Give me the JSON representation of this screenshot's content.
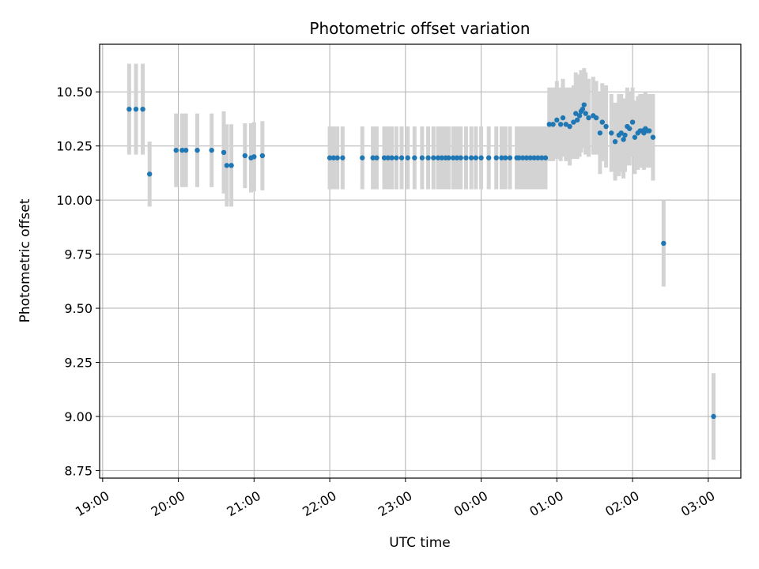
{
  "chart_data": {
    "type": "scatter",
    "title": "Photometric offset variation",
    "xlabel": "UTC time",
    "ylabel": "Photometric offset",
    "x_unit": "hours since 19:00 UTC",
    "xlim": [
      -0.04,
      8.43
    ],
    "ylim": [
      8.715,
      10.72
    ],
    "yticks": [
      "8.75",
      "9.00",
      "9.25",
      "9.50",
      "9.75",
      "10.00",
      "10.25",
      "10.50"
    ],
    "xticks": [
      "19:00",
      "20:00",
      "21:00",
      "22:00",
      "23:00",
      "00:00",
      "01:00",
      "02:00",
      "03:00"
    ],
    "grid": true,
    "point_color": "#1f77b4",
    "errorbar_color": "#d3d3d3",
    "series": [
      {
        "x": [
          0.35,
          0.44,
          0.53,
          0.62,
          0.97,
          1.05,
          1.1,
          1.25,
          1.44,
          1.6,
          1.64,
          1.7,
          1.88,
          1.96,
          2.0,
          2.11,
          3.0,
          3.05,
          3.1,
          3.17,
          3.43,
          3.57,
          3.62,
          3.72,
          3.77,
          3.82,
          3.88,
          3.95,
          4.03,
          4.12,
          4.22,
          4.3,
          4.37,
          4.43,
          4.48,
          4.53,
          4.57,
          4.63,
          4.68,
          4.73,
          4.8,
          4.87,
          4.93,
          5.0,
          5.1,
          5.2,
          5.27,
          5.32,
          5.38,
          5.47,
          5.5,
          5.55,
          5.6,
          5.65,
          5.7,
          5.75,
          5.8,
          5.85
        ],
        "y": [
          10.42,
          10.42,
          10.42,
          10.12,
          10.23,
          10.23,
          10.23,
          10.23,
          10.23,
          10.22,
          10.16,
          10.16,
          10.205,
          10.195,
          10.2,
          10.205,
          10.195,
          10.195,
          10.195,
          10.195,
          10.195,
          10.195,
          10.195,
          10.195,
          10.195,
          10.195,
          10.195,
          10.195,
          10.195,
          10.195,
          10.195,
          10.195,
          10.195,
          10.195,
          10.195,
          10.195,
          10.195,
          10.195,
          10.195,
          10.195,
          10.195,
          10.195,
          10.195,
          10.195,
          10.195,
          10.195,
          10.195,
          10.195,
          10.195,
          10.195,
          10.195,
          10.195,
          10.195,
          10.195,
          10.195,
          10.195,
          10.195,
          10.195
        ],
        "err": [
          0.21,
          0.21,
          0.21,
          0.15,
          0.17,
          0.17,
          0.17,
          0.17,
          0.17,
          0.19,
          0.19,
          0.19,
          0.15,
          0.16,
          0.16,
          0.16,
          0.145,
          0.145,
          0.145,
          0.145,
          0.145,
          0.145,
          0.145,
          0.145,
          0.145,
          0.145,
          0.145,
          0.145,
          0.145,
          0.145,
          0.145,
          0.145,
          0.145,
          0.145,
          0.145,
          0.145,
          0.145,
          0.145,
          0.145,
          0.145,
          0.145,
          0.145,
          0.145,
          0.145,
          0.145,
          0.145,
          0.145,
          0.145,
          0.145,
          0.145,
          0.145,
          0.145,
          0.145,
          0.145,
          0.145,
          0.145,
          0.145,
          0.145
        ]
      },
      {
        "x": [
          5.9,
          5.95,
          6.0,
          6.05,
          6.08,
          6.12,
          6.17,
          6.22,
          6.25,
          6.27,
          6.3,
          6.32,
          6.34,
          6.36,
          6.38,
          6.42,
          6.48,
          6.52,
          6.57,
          6.6,
          6.65,
          6.72,
          6.77,
          6.82,
          6.85,
          6.88,
          6.9,
          6.93,
          6.96,
          7.0,
          7.03,
          7.07,
          7.1,
          7.13,
          7.15,
          7.17,
          7.2,
          7.22,
          7.27,
          7.41,
          8.07
        ],
        "y": [
          10.35,
          10.35,
          10.37,
          10.35,
          10.38,
          10.35,
          10.34,
          10.36,
          10.4,
          10.37,
          10.39,
          10.41,
          10.42,
          10.44,
          10.4,
          10.38,
          10.39,
          10.38,
          10.31,
          10.36,
          10.34,
          10.31,
          10.27,
          10.3,
          10.31,
          10.28,
          10.3,
          10.34,
          10.33,
          10.36,
          10.29,
          10.31,
          10.32,
          10.32,
          10.31,
          10.33,
          10.32,
          10.32,
          10.29,
          9.8,
          9.0
        ],
        "err": [
          0.17,
          0.17,
          0.18,
          0.17,
          0.18,
          0.17,
          0.18,
          0.17,
          0.19,
          0.18,
          0.19,
          0.19,
          0.18,
          0.17,
          0.19,
          0.18,
          0.18,
          0.17,
          0.19,
          0.18,
          0.19,
          0.18,
          0.18,
          0.19,
          0.18,
          0.18,
          0.17,
          0.18,
          0.17,
          0.16,
          0.17,
          0.17,
          0.17,
          0.17,
          0.17,
          0.17,
          0.17,
          0.17,
          0.2,
          0.2,
          0.2
        ]
      }
    ]
  }
}
